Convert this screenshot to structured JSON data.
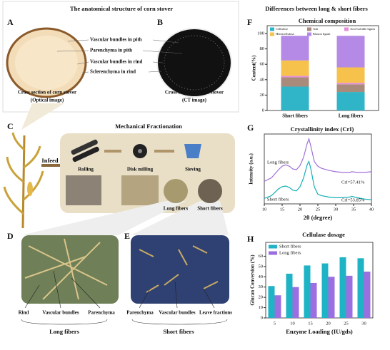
{
  "figure": {
    "anatomy_title": "The anatomical structure of corn stover",
    "panel_letters": [
      "A",
      "B",
      "C",
      "D",
      "E",
      "F",
      "G",
      "H"
    ],
    "anatomy_labels": [
      "Vascular bundles in pith",
      "Parenchyma in pith",
      "Vascular bundles in rind",
      "Sclerenchyma in rind"
    ],
    "caption_a": [
      "Cross section of corn stover",
      "(Optical image)"
    ],
    "caption_b": [
      "Cross section of corn stover",
      "(CT image)"
    ],
    "fractionation_title": "Mechanical Fractionation",
    "infeed": "Infeed",
    "steps": [
      "Rolling",
      "Disk milling",
      "Sieving"
    ],
    "sieve_outputs": [
      "Long fibers",
      "Short fibers"
    ],
    "d_labels": [
      "Rind",
      "Vascular bundles",
      "Parenchyma"
    ],
    "d_group": "Long fibers",
    "e_labels": [
      "Parenchyma",
      "Vascular bundles",
      "Leave fractions"
    ],
    "e_group": "Short fibers",
    "comparison_title": "Differences between long & short fibers"
  },
  "chart_data": [
    {
      "type": "bar",
      "stacked": true,
      "title": "Chemical composition",
      "ylabel": "Content(%)",
      "categories": [
        "Short fibers",
        "Long fibers"
      ],
      "series": [
        {
          "name": "Cellulose",
          "color": "#2fb4c8",
          "values": [
            31,
            24
          ]
        },
        {
          "name": "Ash",
          "color": "#a98b7c",
          "values": [
            12,
            10
          ]
        },
        {
          "name": "Acid-soluble lignin",
          "color": "#e58fd8",
          "values": [
            2,
            2
          ]
        },
        {
          "name": "Hemicellulose",
          "color": "#f6c24c",
          "values": [
            20,
            20
          ]
        },
        {
          "name": "Klason lignin",
          "color": "#b58ae6",
          "values": [
            32,
            41
          ]
        }
      ],
      "ylim": [
        0,
        100
      ],
      "yticks": [
        0,
        20,
        40,
        60,
        80,
        100
      ]
    },
    {
      "type": "line",
      "title": "Crystallinity index (CrI)",
      "xlabel": "2θ (degree)",
      "ylabel": "Intensity (a.u.)",
      "x": [
        10,
        12,
        14,
        15,
        16,
        17,
        18,
        19,
        20,
        21,
        22,
        22.5,
        23,
        24,
        25,
        26,
        28,
        30,
        32,
        34,
        34.5,
        36,
        38,
        40
      ],
      "series": [
        {
          "name": "Long fibers",
          "color": "#a070d8",
          "values": [
            33,
            38,
            50,
            55,
            57,
            55,
            51,
            50,
            56,
            68,
            88,
            95,
            85,
            62,
            55,
            52,
            49,
            47,
            46,
            46,
            47,
            46,
            46,
            47
          ]
        },
        {
          "name": "Short fibers",
          "color": "#18afb8",
          "values": [
            8,
            12,
            22,
            25,
            26,
            24,
            20,
            19,
            25,
            38,
            57,
            62,
            52,
            25,
            14,
            12,
            10,
            9,
            9,
            10,
            11,
            9,
            7,
            6
          ]
        }
      ],
      "annotations": [
        "CrI=57.41%",
        "CrI=53.85%"
      ],
      "xlim": [
        10,
        40
      ],
      "xticks": [
        10,
        15,
        20,
        25,
        30,
        35,
        40
      ],
      "ylim": [
        0,
        100
      ]
    },
    {
      "type": "bar",
      "title": "Cellulase dosage",
      "xlabel": "Enzyme Loading (IU/gds)",
      "ylabel": "Glucan Conversion (%)",
      "categories": [
        "5",
        "10",
        "15",
        "20",
        "25",
        "30"
      ],
      "series": [
        {
          "name": "Short fibers",
          "color": "#1fb3c6",
          "values": [
            31,
            43,
            51,
            53,
            59,
            58
          ]
        },
        {
          "name": "Long fibers",
          "color": "#9b6fe0",
          "values": [
            22,
            30,
            34,
            40,
            41,
            45
          ]
        }
      ],
      "ylim": [
        0,
        70
      ],
      "yticks": [
        0,
        10,
        20,
        30,
        40,
        50,
        60
      ],
      "legend": "upper left"
    }
  ]
}
